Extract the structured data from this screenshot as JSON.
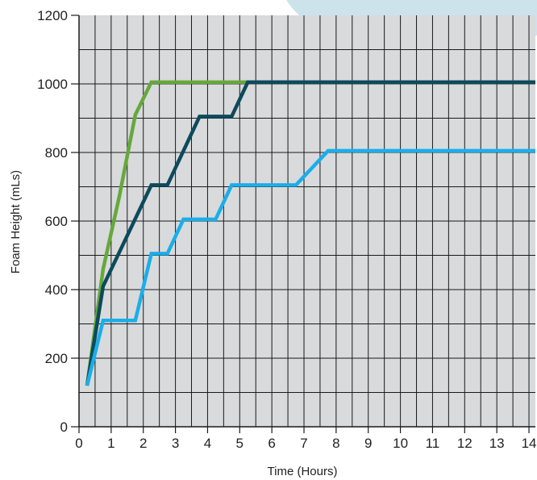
{
  "chart_data": {
    "type": "line",
    "title": "",
    "xlabel": "Time (Hours)",
    "ylabel": "Foam Height (mLs)",
    "xlim": [
      0,
      14.2
    ],
    "ylim": [
      0,
      1200
    ],
    "x_ticks": [
      0,
      1,
      2,
      3,
      4,
      5,
      6,
      7,
      8,
      9,
      10,
      11,
      12,
      13,
      14
    ],
    "y_ticks": [
      0,
      200,
      400,
      600,
      800,
      1000,
      1200
    ],
    "grid": true,
    "background_color": "#d9dadc",
    "series": [
      {
        "color": "#66a83c",
        "points": [
          [
            0.25,
            120
          ],
          [
            0.75,
            460
          ],
          [
            1.25,
            670
          ],
          [
            1.75,
            910
          ],
          [
            2.25,
            1005
          ],
          [
            14.2,
            1005
          ]
        ]
      },
      {
        "color": "#0c4a5c",
        "points": [
          [
            0.25,
            120
          ],
          [
            0.75,
            410
          ],
          [
            2.25,
            705
          ],
          [
            2.75,
            705
          ],
          [
            3.75,
            905
          ],
          [
            4.75,
            905
          ],
          [
            5.25,
            1005
          ],
          [
            14.2,
            1005
          ]
        ]
      },
      {
        "color": "#1aaeea",
        "points": [
          [
            0.25,
            120
          ],
          [
            0.75,
            310
          ],
          [
            1.75,
            310
          ],
          [
            2.25,
            505
          ],
          [
            2.75,
            505
          ],
          [
            3.25,
            605
          ],
          [
            4.25,
            605
          ],
          [
            4.75,
            705
          ],
          [
            6.75,
            705
          ],
          [
            7.75,
            805
          ],
          [
            14.2,
            805
          ]
        ]
      }
    ]
  }
}
